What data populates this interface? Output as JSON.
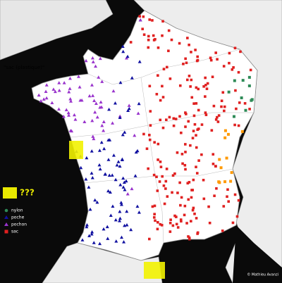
{
  "map": {
    "title": "\"sac (plastique)\"",
    "legend": [
      {
        "label": "???",
        "color": "#e8e800"
      },
      {
        "label": "nylon",
        "color": "#2e8b57"
      },
      {
        "label": "poche",
        "color": "#1010a0"
      },
      {
        "label": "pochon",
        "color": "#9933cc"
      },
      {
        "label": "sac",
        "color": "#e02020"
      }
    ],
    "credit": "© Mathieu Avanzi"
  }
}
